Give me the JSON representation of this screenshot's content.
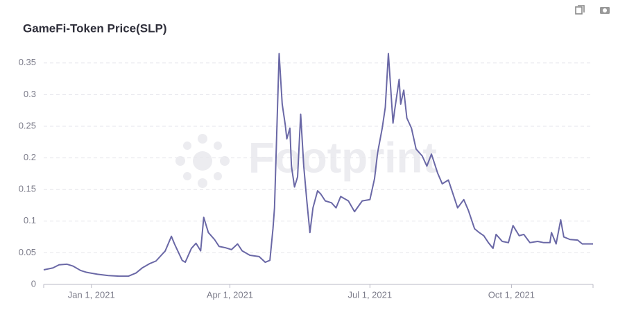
{
  "chart_data": {
    "type": "line",
    "title": "GameFi-Token Price(SLP)",
    "watermark": "Footprint",
    "color": "#6a68a6",
    "grid": true,
    "xlim": [
      "2020-12-01",
      "2021-11-23"
    ],
    "xticks": [
      {
        "value": "2021-01-01",
        "label": "Jan 1, 2021"
      },
      {
        "value": "2021-04-01",
        "label": "Apr 1, 2021"
      },
      {
        "value": "2021-07-01",
        "label": "Jul 1, 2021"
      },
      {
        "value": "2021-10-01",
        "label": "Oct 1, 2021"
      }
    ],
    "ylim": [
      0,
      0.375
    ],
    "yticks": [
      0,
      0.05,
      0.1,
      0.15,
      0.2,
      0.25,
      0.3,
      0.35
    ],
    "x": [
      "2020-12-01",
      "2020-12-07",
      "2020-12-11",
      "2020-12-16",
      "2020-12-20",
      "2020-12-25",
      "2020-12-29",
      "2021-01-05",
      "2021-01-12",
      "2021-01-19",
      "2021-01-25",
      "2021-01-30",
      "2021-02-03",
      "2021-02-08",
      "2021-02-12",
      "2021-02-18",
      "2021-02-22",
      "2021-02-24",
      "2021-03-01",
      "2021-03-03",
      "2021-03-07",
      "2021-03-10",
      "2021-03-13",
      "2021-03-15",
      "2021-03-18",
      "2021-03-22",
      "2021-03-25",
      "2021-03-29",
      "2021-04-02",
      "2021-04-06",
      "2021-04-09",
      "2021-04-14",
      "2021-04-20",
      "2021-04-24",
      "2021-04-27",
      "2021-04-29",
      "2021-04-30",
      "2021-05-03",
      "2021-05-05",
      "2021-05-07",
      "2021-05-08",
      "2021-05-10",
      "2021-05-11",
      "2021-05-13",
      "2021-05-15",
      "2021-05-17",
      "2021-05-19",
      "2021-05-21",
      "2021-05-23",
      "2021-05-25",
      "2021-05-28",
      "2021-05-30",
      "2021-06-02",
      "2021-06-06",
      "2021-06-09",
      "2021-06-12",
      "2021-06-17",
      "2021-06-21",
      "2021-06-26",
      "2021-07-01",
      "2021-07-04",
      "2021-07-06",
      "2021-07-09",
      "2021-07-11",
      "2021-07-13",
      "2021-07-14",
      "2021-07-16",
      "2021-07-17",
      "2021-07-20",
      "2021-07-21",
      "2021-07-23",
      "2021-07-25",
      "2021-07-28",
      "2021-07-31",
      "2021-08-04",
      "2021-08-07",
      "2021-08-10",
      "2021-08-14",
      "2021-08-17",
      "2021-08-21",
      "2021-08-24",
      "2021-08-27",
      "2021-08-31",
      "2021-09-03",
      "2021-09-07",
      "2021-09-10",
      "2021-09-13",
      "2021-09-16",
      "2021-09-19",
      "2021-09-21",
      "2021-09-25",
      "2021-09-29",
      "2021-10-02",
      "2021-10-06",
      "2021-10-09",
      "2021-10-13",
      "2021-10-18",
      "2021-10-22",
      "2021-10-26",
      "2021-10-27",
      "2021-10-30",
      "2021-11-02",
      "2021-11-04",
      "2021-11-08",
      "2021-11-13",
      "2021-11-16",
      "2021-11-23"
    ],
    "values": [
      0.023,
      0.026,
      0.031,
      0.032,
      0.029,
      0.022,
      0.019,
      0.016,
      0.014,
      0.013,
      0.013,
      0.018,
      0.026,
      0.033,
      0.037,
      0.053,
      0.076,
      0.064,
      0.038,
      0.035,
      0.057,
      0.065,
      0.053,
      0.106,
      0.082,
      0.071,
      0.06,
      0.058,
      0.055,
      0.064,
      0.053,
      0.046,
      0.044,
      0.035,
      0.038,
      0.088,
      0.121,
      0.365,
      0.285,
      0.252,
      0.23,
      0.247,
      0.187,
      0.154,
      0.17,
      0.269,
      0.187,
      0.132,
      0.082,
      0.121,
      0.148,
      0.143,
      0.132,
      0.129,
      0.121,
      0.139,
      0.132,
      0.115,
      0.132,
      0.134,
      0.167,
      0.208,
      0.247,
      0.28,
      0.365,
      0.329,
      0.255,
      0.274,
      0.324,
      0.285,
      0.307,
      0.263,
      0.247,
      0.214,
      0.203,
      0.187,
      0.206,
      0.176,
      0.159,
      0.165,
      0.143,
      0.121,
      0.134,
      0.117,
      0.088,
      0.082,
      0.077,
      0.066,
      0.057,
      0.079,
      0.068,
      0.066,
      0.093,
      0.077,
      0.079,
      0.066,
      0.068,
      0.066,
      0.066,
      0.082,
      0.064,
      0.102,
      0.075,
      0.071,
      0.07,
      0.064,
      0.064
    ]
  }
}
